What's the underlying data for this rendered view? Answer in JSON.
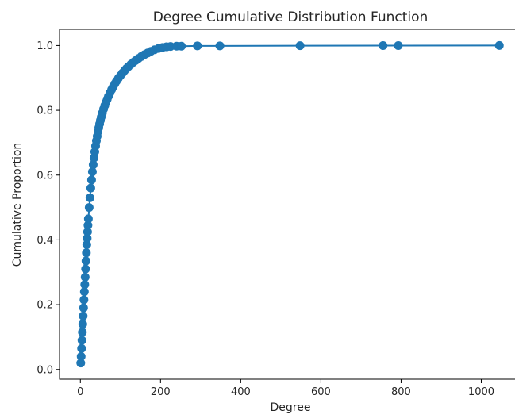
{
  "chart_data": {
    "type": "line",
    "title": "Degree Cumulative Distribution Function",
    "xlabel": "Degree",
    "ylabel": "Cumulative Proportion",
    "xlim": [
      -52,
      1100
    ],
    "ylim": [
      -0.03,
      1.05
    ],
    "x_ticks": [
      0,
      200,
      400,
      600,
      800,
      1000
    ],
    "x_tick_labels": [
      "0",
      "200",
      "400",
      "600",
      "800",
      "1000"
    ],
    "y_ticks": [
      0.0,
      0.2,
      0.4,
      0.6,
      0.8,
      1.0
    ],
    "y_tick_labels": [
      "0.0",
      "0.2",
      "0.4",
      "0.6",
      "0.8",
      "1.0"
    ],
    "grid": false,
    "legend": "none",
    "series": [
      {
        "color": "#1f77b4",
        "marker": "circle",
        "x": [
          1,
          2,
          3,
          4,
          5,
          6,
          7,
          8,
          9,
          10,
          11,
          12,
          13,
          14,
          15,
          16,
          17,
          18,
          19,
          20,
          22,
          24,
          26,
          28,
          30,
          32,
          34,
          36,
          38,
          40,
          42,
          44,
          46,
          48,
          50,
          52,
          55,
          58,
          61,
          64,
          67,
          70,
          74,
          78,
          82,
          86,
          90,
          95,
          100,
          105,
          110,
          115,
          120,
          126,
          132,
          138,
          145,
          152,
          160,
          168,
          176,
          185,
          195,
          205,
          215,
          225,
          240,
          252,
          292,
          348,
          548,
          755,
          793,
          1045
        ],
        "y": [
          0.02,
          0.04,
          0.065,
          0.09,
          0.115,
          0.14,
          0.165,
          0.19,
          0.215,
          0.24,
          0.262,
          0.285,
          0.31,
          0.335,
          0.36,
          0.385,
          0.405,
          0.425,
          0.445,
          0.465,
          0.5,
          0.53,
          0.56,
          0.585,
          0.61,
          0.632,
          0.653,
          0.672,
          0.69,
          0.706,
          0.72,
          0.734,
          0.746,
          0.758,
          0.769,
          0.779,
          0.792,
          0.804,
          0.815,
          0.825,
          0.834,
          0.843,
          0.854,
          0.864,
          0.873,
          0.882,
          0.89,
          0.899,
          0.907,
          0.915,
          0.922,
          0.929,
          0.935,
          0.942,
          0.948,
          0.954,
          0.96,
          0.966,
          0.972,
          0.977,
          0.982,
          0.987,
          0.991,
          0.994,
          0.996,
          0.997,
          0.998,
          0.998,
          0.999,
          0.999,
          0.9995,
          0.9997,
          0.9998,
          1.0
        ]
      }
    ]
  }
}
